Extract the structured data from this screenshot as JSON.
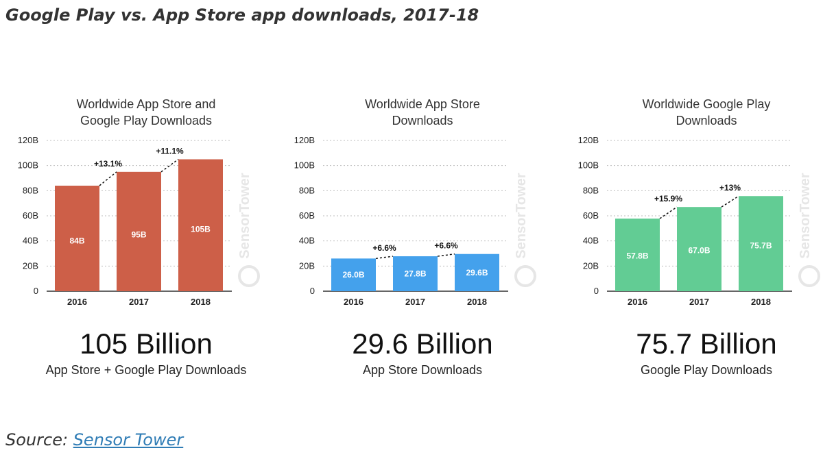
{
  "header": {
    "title": "Google Play vs. App Store app downloads, 2017-18"
  },
  "footer": {
    "source_label": "Source:",
    "source_link": "Sensor Tower"
  },
  "colors": {
    "combined": "#cd5f48",
    "app_store": "#44a1ec",
    "google_play": "#62cc94",
    "grid": "#bdbdbd"
  },
  "watermark": "SensorTower",
  "panels": [
    {
      "title_lines": [
        "Worldwide App Store and",
        "Google Play Downloads"
      ],
      "big_number": "105 Billion",
      "subtitle": "App Store + Google Play Downloads"
    },
    {
      "title_lines": [
        "Worldwide App Store",
        "Downloads"
      ],
      "big_number": "29.6 Billion",
      "subtitle": "App Store Downloads"
    },
    {
      "title_lines": [
        "Worldwide Google Play",
        "Downloads"
      ],
      "big_number": "75.7 Billion",
      "subtitle": "Google Play Downloads"
    }
  ],
  "chart_data": [
    {
      "type": "bar",
      "title": "Worldwide App Store and Google Play Downloads",
      "categories": [
        "2016",
        "2017",
        "2018"
      ],
      "values": [
        84,
        95,
        105
      ],
      "value_labels": [
        "84B",
        "95B",
        "105B"
      ],
      "growth_labels": [
        "+13.1%",
        "+11.1%"
      ],
      "yticks": [
        "0",
        "20B",
        "40B",
        "60B",
        "80B",
        "100B",
        "120B"
      ],
      "ylim": [
        0,
        120
      ],
      "grid": true,
      "color": "#cd5f48"
    },
    {
      "type": "bar",
      "title": "Worldwide App Store Downloads",
      "categories": [
        "2016",
        "2017",
        "2018"
      ],
      "values": [
        26.0,
        27.8,
        29.6
      ],
      "value_labels": [
        "26.0B",
        "27.8B",
        "29.6B"
      ],
      "growth_labels": [
        "+6.6%",
        "+6.6%"
      ],
      "yticks": [
        "0",
        "20B",
        "40B",
        "60B",
        "80B",
        "100B",
        "120B"
      ],
      "ylim": [
        0,
        120
      ],
      "grid": true,
      "color": "#44a1ec"
    },
    {
      "type": "bar",
      "title": "Worldwide Google Play Downloads",
      "categories": [
        "2016",
        "2017",
        "2018"
      ],
      "values": [
        57.8,
        67.0,
        75.7
      ],
      "value_labels": [
        "57.8B",
        "67.0B",
        "75.7B"
      ],
      "growth_labels": [
        "+15.9%",
        "+13%"
      ],
      "yticks": [
        "0",
        "20B",
        "40B",
        "60B",
        "80B",
        "100B",
        "120B"
      ],
      "ylim": [
        0,
        120
      ],
      "grid": true,
      "color": "#62cc94"
    }
  ]
}
